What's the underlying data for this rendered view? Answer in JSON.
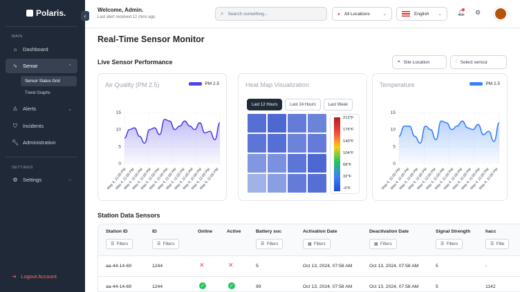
{
  "brand": {
    "name": "Polaris."
  },
  "sidebar": {
    "main_label": "MAIN",
    "settings_label": "SETTINGS",
    "items": [
      {
        "label": "Dashboard",
        "icon": "home-icon"
      },
      {
        "label": "Sense",
        "icon": "pulse-icon"
      },
      {
        "label": "Alerts",
        "icon": "warning-icon"
      },
      {
        "label": "Incidents",
        "icon": "shield-icon"
      },
      {
        "label": "Administration",
        "icon": "wrench-icon"
      }
    ],
    "subitems": [
      "Sensor Status Grid",
      "Trend Graphs"
    ],
    "settings": "Settings",
    "logout": "Logout Account"
  },
  "header": {
    "welcome": "Welcome, Admin.",
    "last_alert": "Last alert received 12 mins ago.",
    "search_placeholder": "Search something...",
    "location": "All Locations",
    "language": "English"
  },
  "page": {
    "title": "Real-Time Sensor Monitor",
    "section_title": "Live Sensor Performance",
    "site_location": "Site Location",
    "select_sensor": "Select sensor",
    "table_title": "Station Data Sensors"
  },
  "colors": {
    "accent": "#4f46e5",
    "temp": "#3b82f6",
    "sidebar": "#1f2937"
  },
  "cards": {
    "air_title": "Air Quality (PM 2.5)",
    "air_legend": "PM 2.5",
    "heat_title": "Heat Map Visualization",
    "temp_title": "Temperature",
    "temp_legend": "PM 2.5",
    "heat_tabs": [
      "Last 12 Hours",
      "Last 24 Hours",
      "Last Week"
    ],
    "heat_scale": [
      "212°F",
      "176°F",
      "140°F",
      "104°F",
      "68°F",
      "32°F",
      "-4°F"
    ]
  },
  "chart_data": [
    {
      "type": "area",
      "title": "Air Quality (PM 2.5)",
      "series": [
        {
          "name": "PM 2.5",
          "values": [
            7.5,
            10,
            10.5,
            8,
            6,
            10,
            10.5,
            8.5,
            13,
            12.5,
            10,
            11,
            12.5,
            11,
            10,
            12,
            9,
            9.5,
            7,
            12
          ]
        }
      ],
      "ylim": [
        0,
        15
      ],
      "yticks": [
        0,
        5,
        10,
        15
      ],
      "x_labels": [
        "May 4, 11:00 PM",
        "May 4, 11:00 PM",
        "May 4, 11:00 PM",
        "May 4, 11:00 PM",
        "May 4, 11:00 PM",
        "May 4, 11:00 PM",
        "May 4, 11:00 PM",
        "May 4, 11:00 PM",
        "May 4, 11:00 PM",
        "May 4, 11:00 PM",
        "May 4, 11:00 PM",
        "May 4, 11:00 PM"
      ]
    },
    {
      "type": "heatmap",
      "title": "Heat Map Visualization",
      "values": [
        [
          30,
          25,
          40,
          45
        ],
        [
          35,
          30,
          45,
          40
        ],
        [
          60,
          55,
          35,
          25
        ],
        [
          80,
          65,
          40,
          30
        ]
      ],
      "scale": [
        "212°F",
        "176°F",
        "140°F",
        "104°F",
        "68°F",
        "32°F",
        "-4°F"
      ]
    },
    {
      "type": "area",
      "title": "Temperature",
      "series": [
        {
          "name": "PM 2.5",
          "values": [
            8,
            11,
            11,
            8,
            6,
            11,
            10,
            7,
            12.5,
            12,
            10,
            11,
            12.5,
            10.5,
            10,
            11.5,
            8.5,
            9.5,
            6.5,
            12
          ]
        }
      ],
      "ylim": [
        0,
        15
      ],
      "yticks": [
        0,
        5,
        10,
        15
      ],
      "x_labels": [
        "May 4, 11:00 PM",
        "May 4, 11:00 PM",
        "May 4, 11:00 PM",
        "May 4, 11:00 PM",
        "May 4, 11:00 PM",
        "May 4, 11:00 PM",
        "May 4, 11:00 PM",
        "May 4, 11:00 PM",
        "May 4, 11:00 PM",
        "May 4, 11:00 PM",
        "May 4, 11:00 PM",
        "May 4, 11:00 PM"
      ]
    }
  ],
  "table": {
    "columns": [
      "Station ID",
      "ID",
      "Online",
      "Active",
      "Battery soc",
      "Activation Date",
      "Deactivation Date",
      "Signal Strength",
      "hacc"
    ],
    "filter_label": "Filters",
    "filter_cut": "Filte",
    "rows": [
      {
        "station": "aa-44-14-69",
        "id": "1244",
        "online": false,
        "active": false,
        "battery": "5",
        "activation": "Oct 13, 2024, 07:58 AM",
        "deactivation": "Oct 13, 2024, 07:58 AM",
        "signal": "5",
        "hacc": "-"
      },
      {
        "station": "aa-44-14-69",
        "id": "1244",
        "online": true,
        "active": true,
        "battery": "99",
        "activation": "Oct 13, 2024, 07:58 AM",
        "deactivation": "Oct 13, 2024, 07:58 AM",
        "signal": "5",
        "hacc": "1142"
      }
    ]
  }
}
